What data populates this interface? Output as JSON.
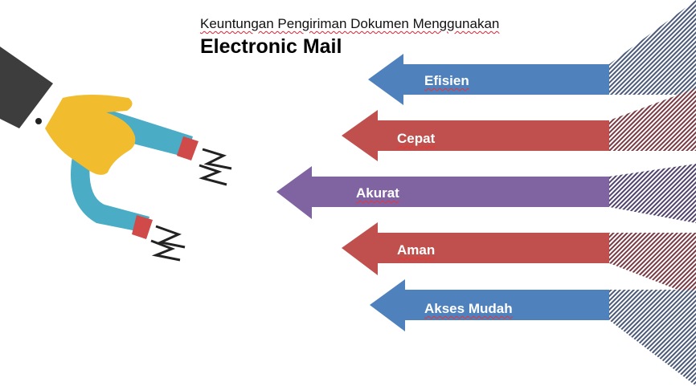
{
  "title": {
    "subtitle": "Keuntungan Pengiriman Dokumen Menggunakan",
    "main": "Electronic Mail"
  },
  "arrows": [
    {
      "label": "Efisien",
      "color": "#4f81bd",
      "stripe": "#4a5a78"
    },
    {
      "label": "Cepat",
      "color": "#c0504d",
      "stripe": "#7a3a44"
    },
    {
      "label": "Akurat",
      "color": "#8064a2",
      "stripe": "#51426e"
    },
    {
      "label": "Aman",
      "color": "#c0504d",
      "stripe": "#7a3a44"
    },
    {
      "label": "Akses Mudah",
      "color": "#4f81bd",
      "stripe": "#4a5a78"
    }
  ],
  "illustration": {
    "icon": "magnet-hand-icon",
    "colors": {
      "sleeve": "#3d3d3d",
      "hand": "#f2bc2f",
      "magnet": "#4bacc6",
      "tip": "#d04a4a",
      "spark": "#222222"
    }
  }
}
